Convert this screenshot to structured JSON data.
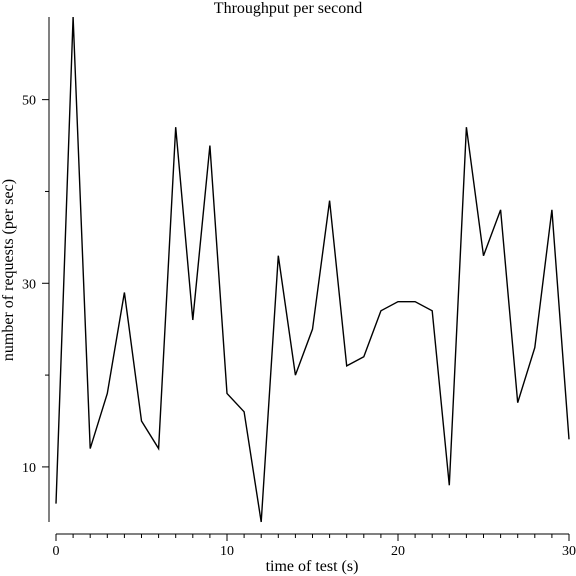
{
  "chart_data": {
    "type": "line",
    "title": "Throughput per second",
    "xlabel": "time of test (s)",
    "ylabel": "number of requests (per sec)",
    "xlim": [
      0,
      30
    ],
    "ylim": [
      4,
      59
    ],
    "xticks": [
      0,
      10,
      20,
      30
    ],
    "yticks": [
      10,
      30,
      50
    ],
    "x_minor_ticks": [
      1,
      2,
      3,
      4,
      5,
      6,
      7,
      8,
      9,
      11,
      12,
      13,
      14,
      15,
      16,
      17,
      18,
      19,
      21,
      22,
      23,
      24,
      25,
      26,
      27,
      28,
      29
    ],
    "y_minor_ticks": [
      20,
      40
    ],
    "grid": false,
    "series": [
      {
        "color": "#000000",
        "x": [
          0,
          1,
          2,
          3,
          4,
          5,
          6,
          7,
          8,
          9,
          10,
          11,
          12,
          13,
          14,
          15,
          16,
          17,
          18,
          19,
          20,
          21,
          22,
          23,
          24,
          25,
          26,
          27,
          28,
          29,
          30
        ],
        "y": [
          6,
          59,
          12,
          18,
          29,
          15,
          12,
          47,
          26,
          45,
          18,
          16,
          4,
          33,
          20,
          25,
          39,
          21,
          22,
          27,
          28,
          28,
          27,
          8,
          47,
          33,
          38,
          17,
          23,
          38,
          13
        ]
      }
    ]
  }
}
